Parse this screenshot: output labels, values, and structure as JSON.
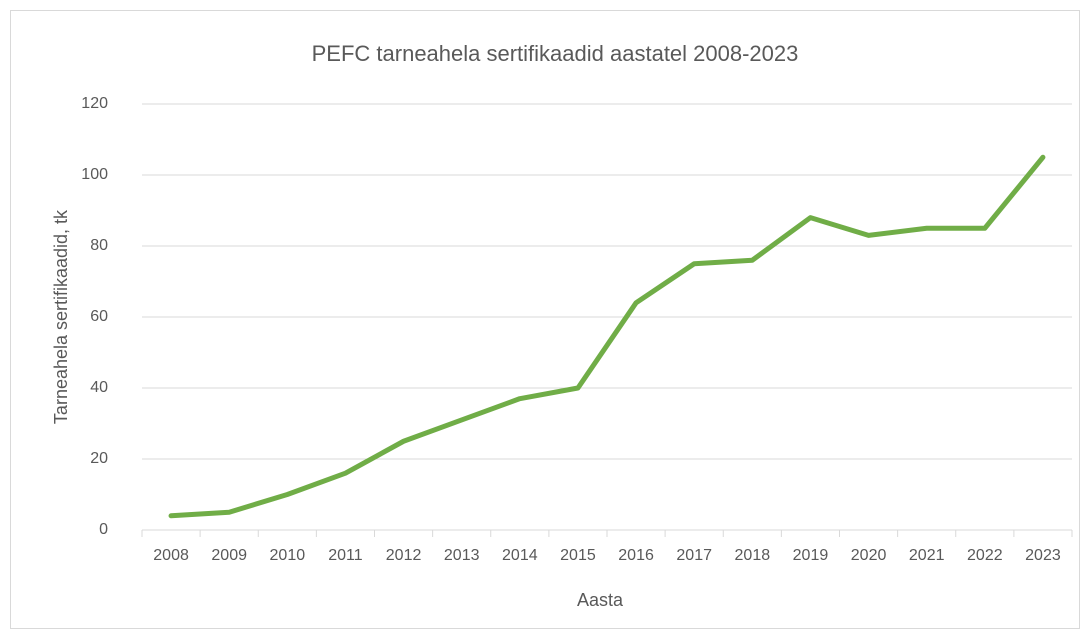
{
  "chart_data": {
    "type": "line",
    "title": "PEFC tarneahela sertifikaadid aastatel 2008-2023",
    "x_label": "Aasta",
    "y_label": "Tarneahela sertifikaadid, tk",
    "categories": [
      "2008",
      "2009",
      "2010",
      "2011",
      "2012",
      "2013",
      "2014",
      "2015",
      "2016",
      "2017",
      "2018",
      "2019",
      "2020",
      "2021",
      "2022",
      "2023"
    ],
    "series": [
      {
        "name": "PEFC tarneahela sertifikaadid",
        "color": "#70ad47",
        "values": [
          4,
          5,
          10,
          16,
          25,
          31,
          37,
          40,
          64,
          75,
          76,
          88,
          83,
          85,
          85,
          105
        ]
      }
    ],
    "ylim": [
      0,
      120
    ],
    "yticks": [
      0,
      20,
      40,
      60,
      80,
      100,
      120
    ],
    "grid": true,
    "legend": false
  }
}
